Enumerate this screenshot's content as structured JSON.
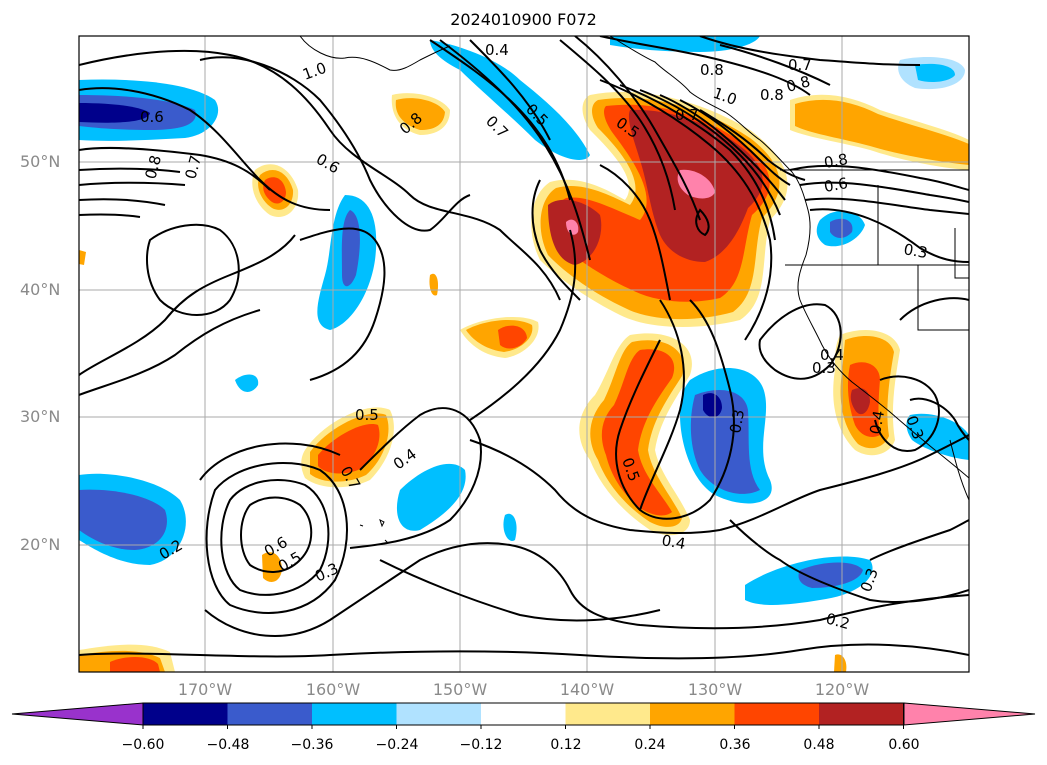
{
  "title": "2024010900 F072",
  "lat_labels": [
    "50°N",
    "40°N",
    "30°N",
    "20°N"
  ],
  "lon_labels": [
    "170°W",
    "160°W",
    "150°W",
    "140°W",
    "130°W",
    "120°W"
  ],
  "colorbar": {
    "ticks": [
      "−0.60",
      "−0.48",
      "−0.36",
      "−0.24",
      "−0.12",
      "0.12",
      "0.24",
      "0.36",
      "0.48",
      "0.60"
    ],
    "colors": [
      "#9932cc",
      "#00008b",
      "#3a5bcc",
      "#00bfff",
      "#b0e2ff",
      "#ffffff",
      "#ffe98c",
      "#ffa500",
      "#ff4500",
      "#b22222",
      "#ff82ab"
    ]
  },
  "contour_labels": [
    "0.4",
    "0.5",
    "0.7",
    "1.0",
    "0.8",
    "0.6",
    "0.8",
    "0.7",
    "0.6",
    "0.5",
    "0.7",
    "1.0",
    "0.7",
    "0.8",
    "0.8",
    "0.6",
    "0.3",
    "0.3",
    "0.3",
    "0.4",
    "0.3",
    "0.5",
    "0.7",
    "0.4",
    "0.5",
    "0.4",
    "0.6",
    "0.5",
    "0.3",
    "0.2",
    "0.2",
    "0.3",
    "0.4",
    "0.8",
    "0.8"
  ]
}
